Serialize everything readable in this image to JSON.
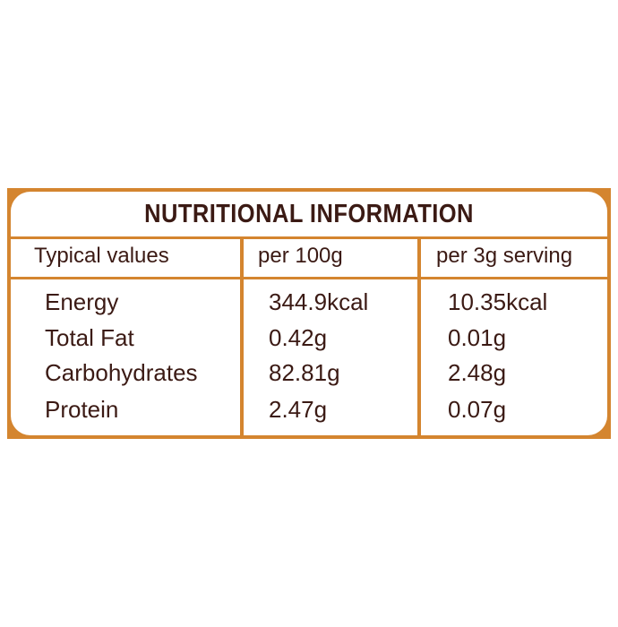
{
  "title": "NUTRITIONAL INFORMATION",
  "table": {
    "header": [
      "Typical values",
      "per 100g",
      "per 3g serving"
    ],
    "rows": [
      [
        "Energy",
        "344.9kcal",
        "10.35kcal"
      ],
      [
        "Total Fat",
        "0.42g",
        "0.01g"
      ],
      [
        "Carbohydrates",
        "82.81g",
        "2.48g"
      ],
      [
        "Protein",
        "2.47g",
        "0.07g"
      ]
    ]
  }
}
